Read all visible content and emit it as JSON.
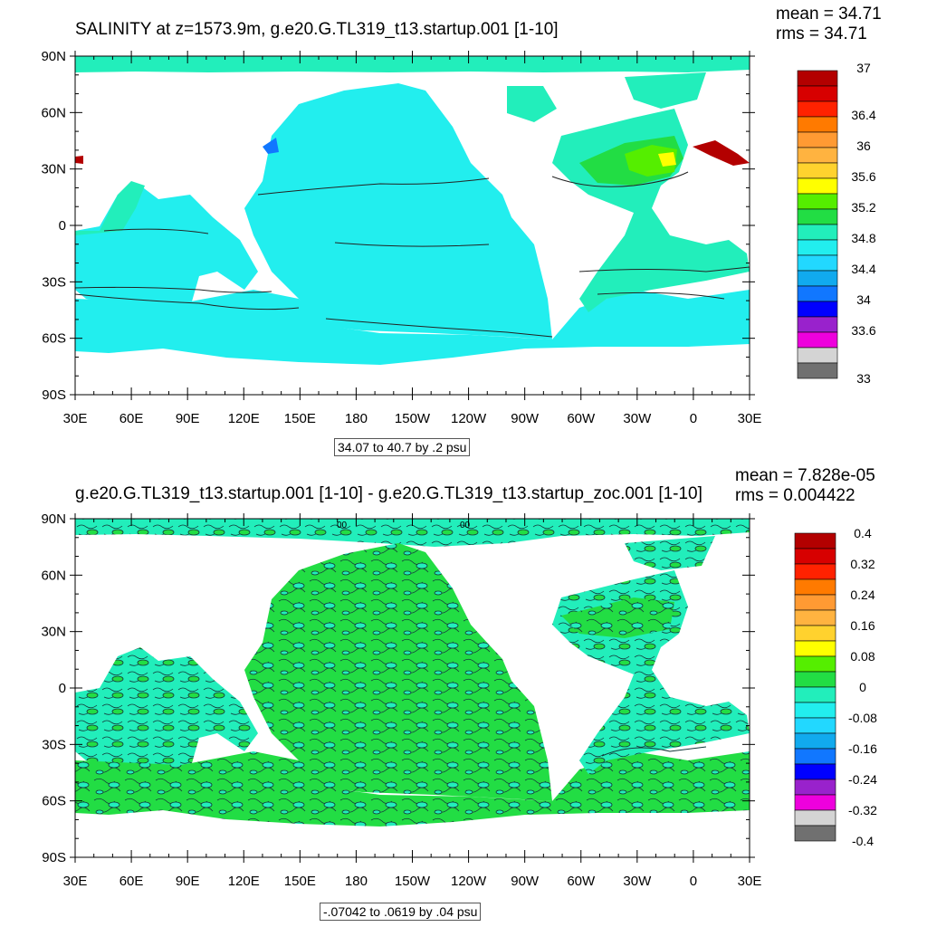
{
  "panels": [
    {
      "title": "SALINITY at z=1573.9m, g.e20.G.TL319_t13.startup.001 [1-10]",
      "mean": "mean = 34.71",
      "rms": "rms = 34.71",
      "contour_info": "34.07 to 40.7 by .2 psu",
      "colorbar": {
        "colors": [
          "#b30000",
          "#d70000",
          "#ff2200",
          "#ff7a00",
          "#ff9a33",
          "#ffb340",
          "#ffd22e",
          "#ffff00",
          "#55ee00",
          "#22dd44",
          "#22eebb",
          "#22eeee",
          "#22d8ff",
          "#11aaee",
          "#1177ff",
          "#0000ff",
          "#9922cc",
          "#ee00dd",
          "#d4d4d4",
          "#707070"
        ],
        "labels": [
          "37",
          "36.4",
          "36",
          "35.6",
          "35.2",
          "34.8",
          "34.4",
          "34",
          "33.6",
          "33"
        ]
      },
      "lat_labels": [
        "90N",
        "60N",
        "30N",
        "0",
        "30S",
        "60S",
        "90S"
      ],
      "lon_labels": [
        "30E",
        "60E",
        "90E",
        "120E",
        "150E",
        "180",
        "150W",
        "120W",
        "90W",
        "60W",
        "30W",
        "0",
        "30E"
      ]
    },
    {
      "title": "g.e20.G.TL319_t13.startup.001 [1-10] - g.e20.G.TL319_t13.startup_zoc.001 [1-10]",
      "mean": "mean = 7.828e-05",
      "rms": "rms = 0.004422",
      "contour_info": "-.07042 to .0619 by .04 psu",
      "contour_labels": [
        "00",
        "00"
      ],
      "colorbar": {
        "colors": [
          "#b30000",
          "#d70000",
          "#ff2200",
          "#ff7a00",
          "#ff9a33",
          "#ffb340",
          "#ffd22e",
          "#ffff00",
          "#55ee00",
          "#22dd44",
          "#22eebb",
          "#22eeee",
          "#22d8ff",
          "#11aaee",
          "#1177ff",
          "#0000ff",
          "#9922cc",
          "#ee00dd",
          "#d4d4d4",
          "#707070"
        ],
        "labels": [
          "0.4",
          "0.32",
          "0.24",
          "0.16",
          "0.08",
          "0",
          "-0.08",
          "-0.16",
          "-0.24",
          "-0.32",
          "-0.4"
        ]
      },
      "lat_labels": [
        "90N",
        "60N",
        "30N",
        "0",
        "30S",
        "60S",
        "90S"
      ],
      "lon_labels": [
        "30E",
        "60E",
        "90E",
        "120E",
        "150E",
        "180",
        "150W",
        "120W",
        "90W",
        "60W",
        "30W",
        "0",
        "30E"
      ]
    }
  ]
}
